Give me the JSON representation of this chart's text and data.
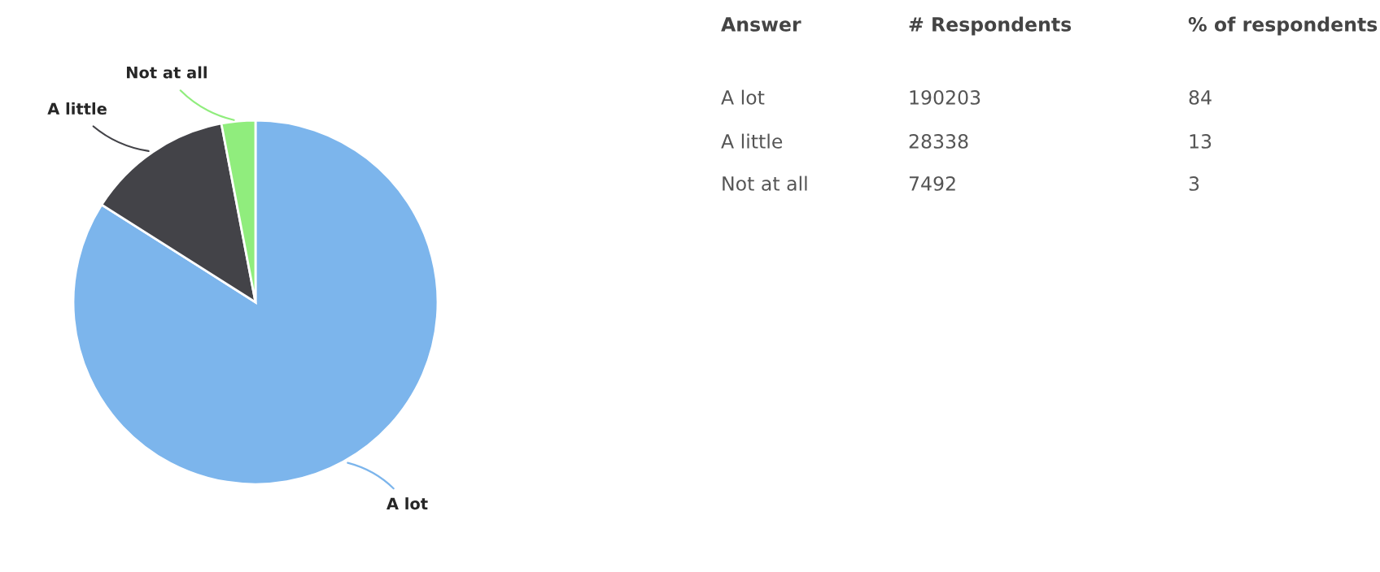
{
  "chart_data": [
    {
      "type": "pie",
      "categories": [
        "A lot",
        "A little",
        "Not at all"
      ],
      "values": [
        84,
        13,
        3
      ],
      "colors": [
        "#7cb5ec",
        "#434348",
        "#90ed7d"
      ]
    },
    {
      "type": "other",
      "annotations": [
        "Answer",
        "# Respondents",
        "% of respondents",
        "A lot",
        "190203",
        "84",
        "A little",
        "28338",
        "13",
        "Not at all",
        "7492",
        "3"
      ]
    }
  ]
}
